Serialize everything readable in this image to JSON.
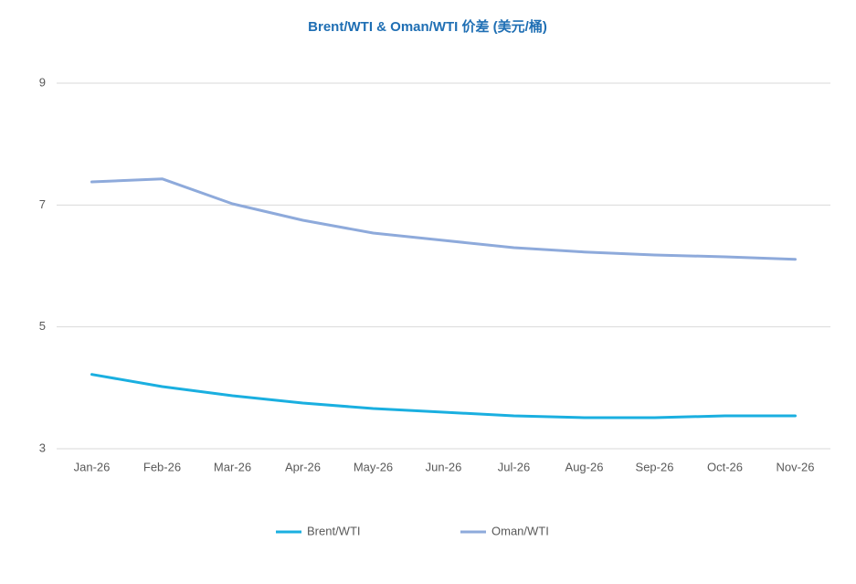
{
  "chart_data": {
    "type": "line",
    "title": "Brent/WTI & Oman/WTI 价差 (美元/桶)",
    "categories": [
      "Jan-26",
      "Feb-26",
      "Mar-26",
      "Apr-26",
      "May-26",
      "Jun-26",
      "Jul-26",
      "Aug-26",
      "Sep-26",
      "Oct-26",
      "Nov-26"
    ],
    "series": [
      {
        "name": "Brent/WTI",
        "color": "#1aafe0",
        "values": [
          4.22,
          4.02,
          3.87,
          3.75,
          3.66,
          3.6,
          3.54,
          3.51,
          3.51,
          3.54,
          3.54
        ]
      },
      {
        "name": "Oman/WTI",
        "color": "#8eaadb",
        "values": [
          7.38,
          7.43,
          7.02,
          6.75,
          6.54,
          6.42,
          6.3,
          6.23,
          6.18,
          6.15,
          6.11
        ]
      }
    ],
    "ylim": [
      3,
      9
    ],
    "yticks": [
      3,
      5,
      7,
      9
    ],
    "grid": true,
    "legend": "bottom"
  }
}
